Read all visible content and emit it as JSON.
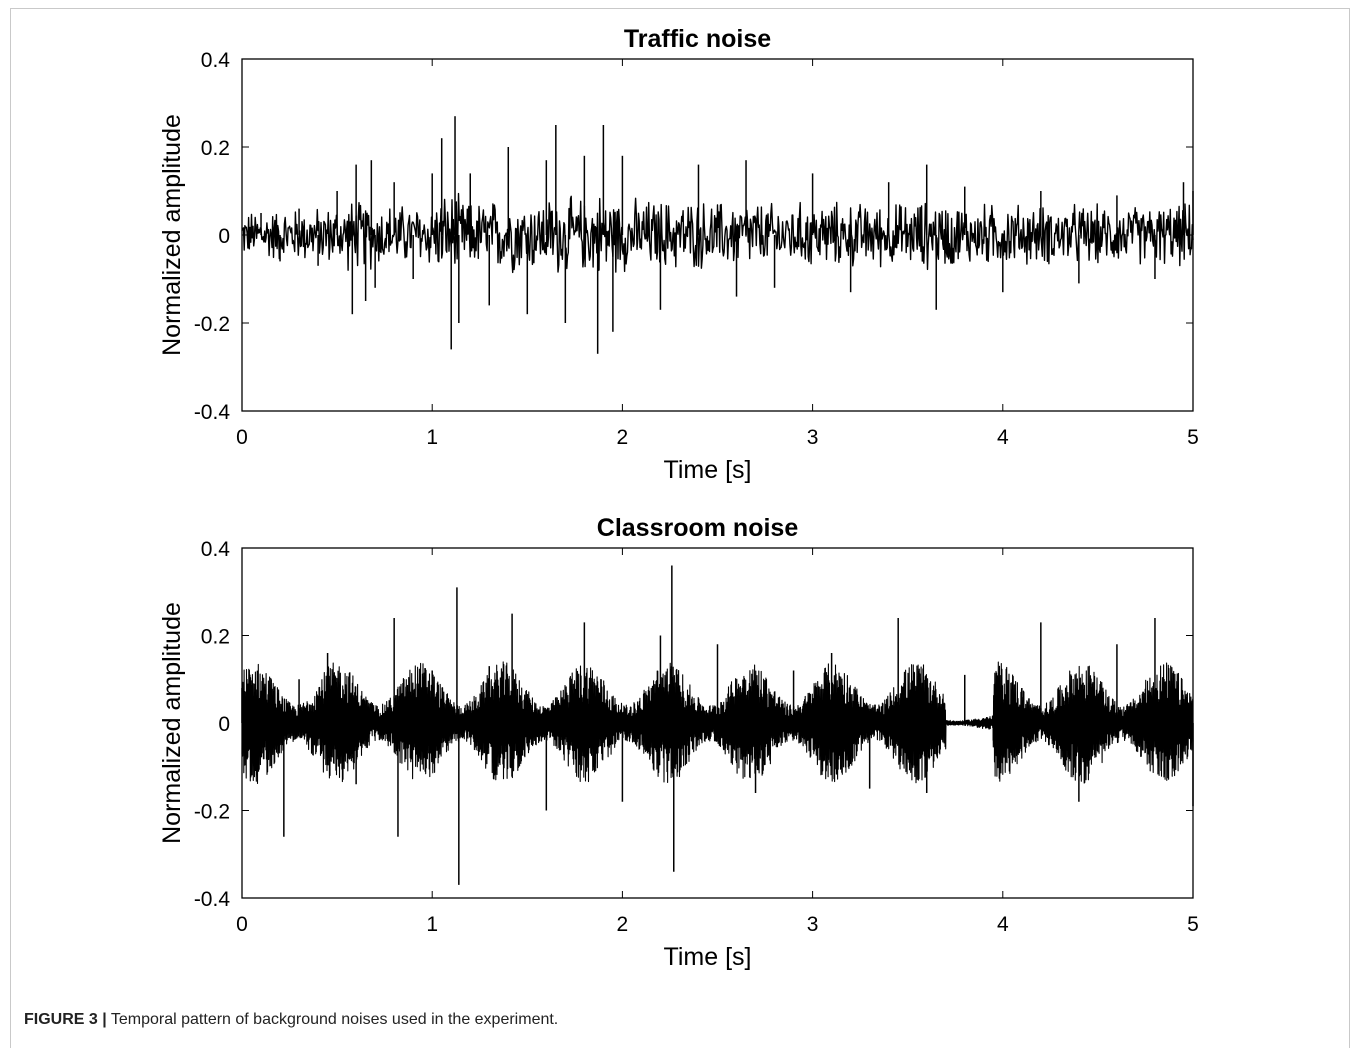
{
  "figure": {
    "caption_label": "FIGURE 3 |",
    "caption_text": " Temporal pattern of background noises used in the experiment."
  },
  "chart_data": [
    {
      "type": "line",
      "title": "Traffic noise",
      "xlabel": "Time [s]",
      "ylabel": "Normalized amplitude",
      "xlim": [
        0,
        5
      ],
      "ylim": [
        -0.4,
        0.4
      ],
      "xticks": [
        0,
        1,
        2,
        3,
        4,
        5
      ],
      "yticks": [
        -0.4,
        -0.2,
        0,
        0.2,
        0.4
      ],
      "ytick_labels": [
        "-0.4",
        "-0.2",
        "0",
        "0.2",
        "0.4"
      ],
      "grid": false,
      "series": [
        {
          "x": [
            0,
            0.1,
            0.2,
            0.3,
            0.4,
            0.5,
            0.58,
            0.6,
            0.65,
            0.68,
            0.7,
            0.8,
            0.9,
            1.0,
            1.05,
            1.1,
            1.12,
            1.14,
            1.2,
            1.3,
            1.4,
            1.5,
            1.6,
            1.65,
            1.7,
            1.8,
            1.87,
            1.9,
            1.95,
            2.0,
            2.2,
            2.4,
            2.6,
            2.65,
            2.8,
            3.0,
            3.2,
            3.4,
            3.6,
            3.65,
            3.8,
            4.0,
            4.2,
            4.4,
            4.6,
            4.8,
            4.95,
            5.0
          ],
          "y": [
            0.0,
            0.05,
            -0.06,
            0.06,
            -0.07,
            0.1,
            -0.18,
            0.16,
            -0.15,
            0.17,
            -0.12,
            0.12,
            -0.1,
            0.14,
            0.22,
            -0.26,
            0.27,
            -0.2,
            0.14,
            -0.16,
            0.2,
            -0.18,
            0.17,
            0.25,
            -0.2,
            0.18,
            -0.27,
            0.25,
            -0.22,
            0.18,
            -0.17,
            0.16,
            -0.14,
            0.17,
            -0.12,
            0.14,
            -0.13,
            0.12,
            0.16,
            -0.17,
            0.11,
            -0.13,
            0.1,
            -0.11,
            0.09,
            -0.1,
            0.12,
            0.1
          ]
        }
      ]
    },
    {
      "type": "line",
      "title": "Classroom noise",
      "xlabel": "Time [s]",
      "ylabel": "Normalized amplitude",
      "xlim": [
        0,
        5
      ],
      "ylim": [
        -0.4,
        0.4
      ],
      "xticks": [
        0,
        1,
        2,
        3,
        4,
        5
      ],
      "yticks": [
        -0.4,
        -0.2,
        0,
        0.2,
        0.4
      ],
      "ytick_labels": [
        "-0.4",
        "-0.2",
        "0",
        "0.2",
        "0.4"
      ],
      "grid": false,
      "series": [
        {
          "x": [
            0,
            0.05,
            0.22,
            0.3,
            0.45,
            0.6,
            0.8,
            0.82,
            1.0,
            1.13,
            1.14,
            1.3,
            1.42,
            1.6,
            1.8,
            2.0,
            2.2,
            2.26,
            2.27,
            2.5,
            2.7,
            2.9,
            3.1,
            3.3,
            3.45,
            3.6,
            3.8,
            3.95,
            4.1,
            4.2,
            4.4,
            4.6,
            4.8,
            5.0
          ],
          "y": [
            0.08,
            -0.12,
            -0.26,
            0.1,
            0.16,
            -0.14,
            0.24,
            -0.26,
            0.12,
            0.31,
            -0.37,
            0.13,
            0.25,
            -0.2,
            0.23,
            -0.18,
            0.2,
            0.36,
            -0.34,
            0.18,
            -0.16,
            0.12,
            0.16,
            -0.15,
            0.24,
            -0.16,
            0.11,
            -0.04,
            0.08,
            0.23,
            -0.18,
            0.18,
            0.24,
            -0.19
          ]
        }
      ]
    }
  ]
}
